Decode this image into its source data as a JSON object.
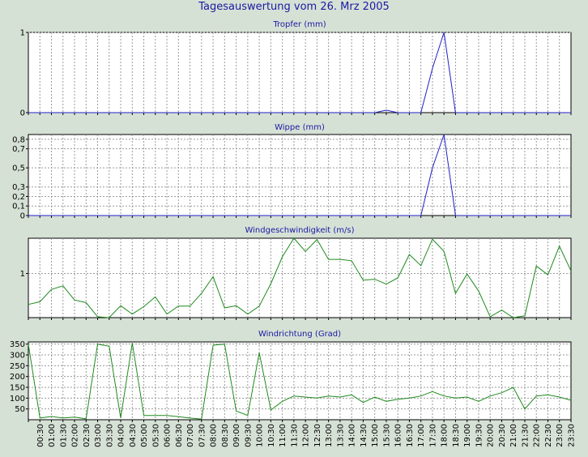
{
  "page": {
    "title": "Tagesauswertung vom 26. Mrz 2005"
  },
  "colors": {
    "background": "#d6e1d6",
    "plot": "#ffffff",
    "title": "#1a1aa0",
    "rain_line": "#2020c8",
    "wind_line": "#1e8a1e",
    "grid": "#9a9a9a"
  },
  "chart_data": [
    {
      "type": "line",
      "title": "Tropfer (mm)",
      "ylim": [
        0,
        1
      ],
      "yticks": [
        0,
        1
      ],
      "ytick_labels": [
        "0",
        "1"
      ],
      "x_hours": [
        0,
        0.5,
        1,
        1.5,
        2,
        2.5,
        3,
        3.5,
        4,
        4.5,
        5,
        5.5,
        6,
        6.5,
        7,
        7.5,
        8,
        8.5,
        9,
        9.5,
        10,
        10.5,
        11,
        11.5,
        12,
        12.5,
        13,
        13.5,
        14,
        14.5,
        15,
        15.5,
        16,
        16.5,
        17,
        17.5,
        18,
        18.5,
        19,
        19.5,
        20,
        20.5,
        21,
        21.5,
        22,
        22.5,
        23,
        23.5
      ],
      "values": [
        0,
        0,
        0,
        0,
        0,
        0,
        0,
        0,
        0,
        0,
        0,
        0,
        0,
        0,
        0,
        0,
        0,
        0,
        0,
        0,
        0,
        0,
        0,
        0,
        0,
        0,
        0,
        0,
        0,
        0,
        0,
        0.03,
        0,
        0,
        0,
        0.55,
        1.0,
        0,
        0,
        0,
        0,
        0,
        0,
        0,
        0,
        0,
        0,
        0
      ],
      "grid": true
    },
    {
      "type": "line",
      "title": "Wippe (mm)",
      "ylim": [
        0,
        0.85
      ],
      "yticks": [
        0,
        0.1,
        0.2,
        0.3,
        0.5,
        0.7,
        0.8
      ],
      "ytick_labels": [
        "0",
        "0,1",
        "0,2",
        "0,3",
        "0,5",
        "0,7",
        "0,8"
      ],
      "x_hours": [
        0,
        0.5,
        1,
        1.5,
        2,
        2.5,
        3,
        3.5,
        4,
        4.5,
        5,
        5.5,
        6,
        6.5,
        7,
        7.5,
        8,
        8.5,
        9,
        9.5,
        10,
        10.5,
        11,
        11.5,
        12,
        12.5,
        13,
        13.5,
        14,
        14.5,
        15,
        15.5,
        16,
        16.5,
        17,
        17.5,
        18,
        18.5,
        19,
        19.5,
        20,
        20.5,
        21,
        21.5,
        22,
        22.5,
        23,
        23.5
      ],
      "values": [
        0,
        0,
        0,
        0,
        0,
        0,
        0,
        0,
        0,
        0,
        0,
        0,
        0,
        0,
        0,
        0,
        0,
        0,
        0,
        0,
        0,
        0,
        0,
        0,
        0,
        0,
        0,
        0,
        0,
        0,
        0,
        0,
        0,
        0,
        0,
        0.5,
        0.85,
        0,
        0,
        0,
        0,
        0,
        0,
        0,
        0,
        0,
        0,
        0
      ],
      "grid": true
    },
    {
      "type": "line",
      "title": "Windgeschwindigkeit (m/s)",
      "ylim": [
        0,
        1.8
      ],
      "yticks": [
        1
      ],
      "ytick_labels": [
        "1"
      ],
      "x_hours": [
        0,
        0.5,
        1,
        1.5,
        2,
        2.5,
        3,
        3.5,
        4,
        4.5,
        5,
        5.5,
        6,
        6.5,
        7,
        7.5,
        8,
        8.5,
        9,
        9.5,
        10,
        10.5,
        11,
        11.5,
        12,
        12.5,
        13,
        13.5,
        14,
        14.5,
        15,
        15.5,
        16,
        16.5,
        17,
        17.5,
        18,
        18.5,
        19,
        19.5,
        20,
        20.5,
        21,
        21.5,
        22,
        22.5,
        23,
        23.5
      ],
      "values": [
        0.3,
        0.36,
        0.64,
        0.72,
        0.4,
        0.34,
        0.02,
        0,
        0.27,
        0.08,
        0.25,
        0.47,
        0.08,
        0.26,
        0.26,
        0.55,
        0.93,
        0.22,
        0.27,
        0.08,
        0.26,
        0.77,
        1.38,
        1.8,
        1.5,
        1.77,
        1.32,
        1.32,
        1.29,
        0.85,
        0.87,
        0.76,
        0.9,
        1.43,
        1.18,
        1.78,
        1.5,
        0.55,
        0.99,
        0.6,
        0.02,
        0.17,
        0,
        0.04,
        1.17,
        0.97,
        1.62,
        1.06
      ],
      "grid": true
    },
    {
      "type": "line",
      "title": "Windrichtung (Grad)",
      "ylim": [
        0,
        360
      ],
      "yticks": [
        50,
        100,
        150,
        200,
        250,
        300,
        350
      ],
      "ytick_labels": [
        "50",
        "100",
        "150",
        "200",
        "250",
        "300",
        "350"
      ],
      "x_hours": [
        0,
        0.5,
        1,
        1.5,
        2,
        2.5,
        3,
        3.5,
        4,
        4.5,
        5,
        5.5,
        6,
        6.5,
        7,
        7.5,
        8,
        8.5,
        9,
        9.5,
        10,
        10.5,
        11,
        11.5,
        12,
        12.5,
        13,
        13.5,
        14,
        14.5,
        15,
        15.5,
        16,
        16.5,
        17,
        17.5,
        18,
        18.5,
        19,
        19.5,
        20,
        20.5,
        21,
        21.5,
        22,
        22.5,
        23,
        23.5
      ],
      "values": [
        350,
        8,
        15,
        8,
        12,
        4,
        350,
        340,
        8,
        355,
        20,
        20,
        20,
        14,
        8,
        3,
        345,
        350,
        40,
        20,
        310,
        45,
        85,
        110,
        105,
        100,
        110,
        105,
        115,
        80,
        105,
        85,
        95,
        100,
        110,
        130,
        110,
        100,
        105,
        85,
        110,
        125,
        150,
        50,
        110,
        115,
        105,
        90
      ],
      "grid": true
    }
  ],
  "x_axis": {
    "min_hour": 0,
    "max_hour": 23.5,
    "tick_labels": [
      "00:30",
      "01:00",
      "01:30",
      "02:00",
      "02:30",
      "03:00",
      "03:30",
      "04:00",
      "04:30",
      "05:00",
      "05:30",
      "06:00",
      "06:30",
      "07:00",
      "07:30",
      "08:00",
      "08:30",
      "09:00",
      "09:30",
      "10:00",
      "10:30",
      "11:00",
      "11:30",
      "12:00",
      "12:30",
      "13:00",
      "13:30",
      "14:00",
      "14:30",
      "15:00",
      "15:30",
      "16:00",
      "16:30",
      "17:00",
      "17:30",
      "18:00",
      "18:30",
      "19:00",
      "19:30",
      "20:00",
      "20:30",
      "21:00",
      "21:30",
      "22:00",
      "22:30",
      "23:00",
      "23:30"
    ]
  }
}
